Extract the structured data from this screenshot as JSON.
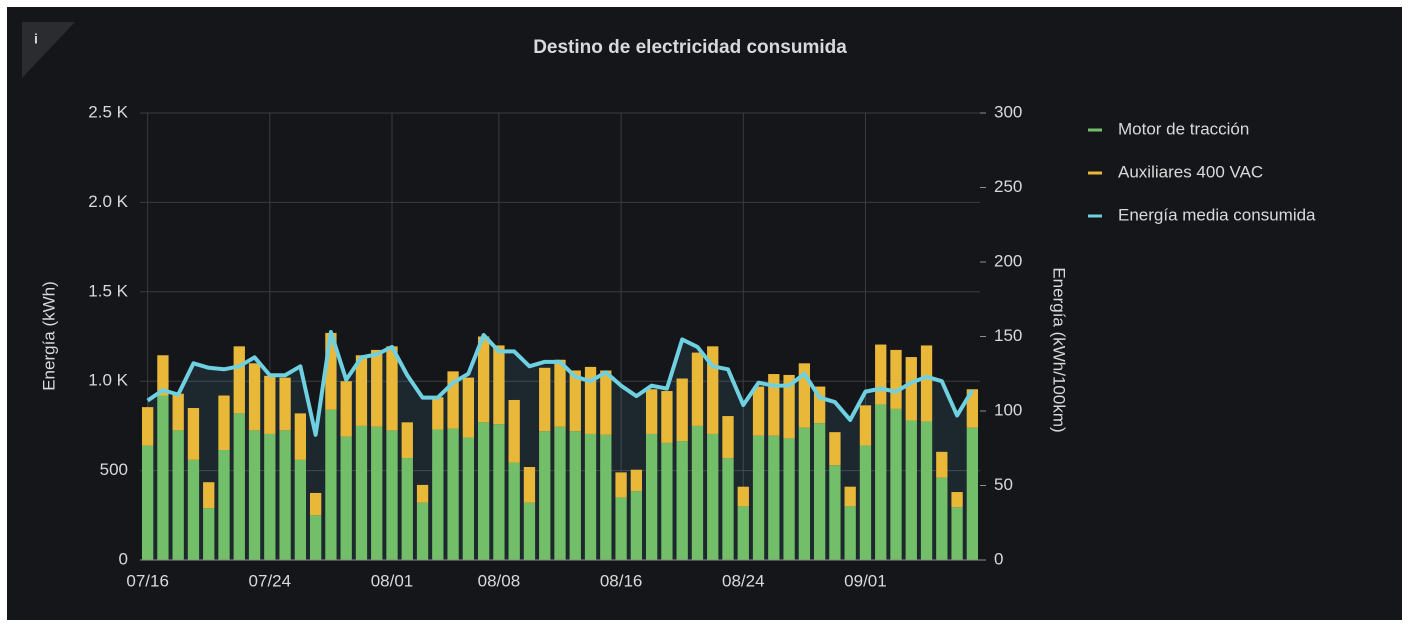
{
  "chart_data": {
    "type": "bar",
    "stacked": true,
    "title": "Destino de electricidad consumida",
    "y_label": "Energía (kWh)",
    "y2_label": "Energía (kWh/100km)",
    "categories": [
      "07/16",
      null,
      null,
      null,
      null,
      null,
      null,
      null,
      "07/24",
      null,
      null,
      null,
      null,
      null,
      null,
      null,
      "08/01",
      null,
      null,
      null,
      null,
      null,
      null,
      "08/08",
      null,
      null,
      null,
      null,
      null,
      null,
      null,
      "08/16",
      null,
      null,
      null,
      null,
      null,
      null,
      null,
      "08/24",
      null,
      null,
      null,
      null,
      null,
      null,
      null,
      "09/01",
      null,
      null,
      null,
      null,
      null,
      null,
      null
    ],
    "series": [
      {
        "name": "Motor de tracción",
        "color": "#73bf69",
        "values": [
          640,
          920,
          725,
          560,
          290,
          615,
          820,
          725,
          705,
          725,
          560,
          250,
          840,
          690,
          750,
          745,
          725,
          570,
          320,
          730,
          735,
          685,
          770,
          760,
          545,
          320,
          720,
          745,
          720,
          705,
          700,
          350,
          385,
          705,
          655,
          665,
          750,
          705,
          570,
          300,
          695,
          695,
          680,
          740,
          765,
          530,
          300,
          640,
          870,
          845,
          780,
          775,
          460,
          295,
          740
        ]
      },
      {
        "name": "Auxiliares 400 VAC",
        "color": "#eab839",
        "values": [
          215,
          225,
          205,
          290,
          145,
          305,
          375,
          375,
          325,
          295,
          260,
          125,
          430,
          310,
          395,
          430,
          470,
          200,
          100,
          180,
          320,
          335,
          480,
          440,
          350,
          200,
          355,
          375,
          340,
          375,
          360,
          140,
          120,
          250,
          290,
          350,
          410,
          490,
          235,
          110,
          275,
          345,
          355,
          360,
          205,
          185,
          110,
          225,
          335,
          330,
          355,
          425,
          145,
          85,
          215
        ]
      },
      {
        "name": "Energía media consumida",
        "color": "#6ed0e0",
        "type": "line",
        "axis": "y2",
        "values": [
          107,
          114,
          111,
          132,
          129,
          128,
          130,
          136,
          124,
          124,
          130,
          84,
          153,
          121,
          136,
          138,
          143,
          124,
          109,
          109,
          119,
          125,
          151,
          140,
          140,
          130,
          133,
          133,
          123,
          120,
          126,
          117,
          110,
          117,
          115,
          148,
          143,
          130,
          128,
          104,
          119,
          117,
          117,
          125,
          109,
          106,
          94,
          113,
          115,
          113,
          119,
          123,
          120,
          97,
          114
        ]
      }
    ],
    "ylim": [
      0,
      2500
    ],
    "yticks": [
      0,
      500,
      {
        "value": 1000,
        "label": "1.0 K"
      },
      {
        "value": 1500,
        "label": "1.5 K"
      },
      {
        "value": 2000,
        "label": "2.0 K"
      },
      {
        "value": 2500,
        "label": "2.5 K"
      }
    ],
    "y2lim": [
      0,
      300
    ],
    "y2ticks": [
      0,
      50,
      100,
      150,
      200,
      250,
      300
    ],
    "grid": true,
    "legend": "right"
  }
}
